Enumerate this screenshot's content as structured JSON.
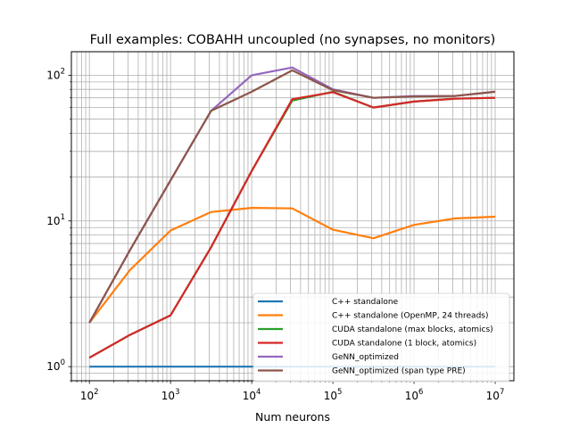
{
  "chart_data": {
    "type": "line",
    "title": "Full examples: COBAHH uncoupled (no synapses, no monitors)",
    "xlabel": "Num neurons",
    "ylabel": "",
    "xscale": "log",
    "yscale": "log",
    "xlim": [
      60,
      17000000
    ],
    "ylim": [
      0.8,
      145
    ],
    "grid": true,
    "legend_position": "lower-right",
    "x_ticks": [
      {
        "value": 100,
        "base": "10",
        "exp": "2"
      },
      {
        "value": 1000,
        "base": "10",
        "exp": "3"
      },
      {
        "value": 10000,
        "base": "10",
        "exp": "4"
      },
      {
        "value": 100000,
        "base": "10",
        "exp": "5"
      },
      {
        "value": 1000000,
        "base": "10",
        "exp": "6"
      },
      {
        "value": 10000000,
        "base": "10",
        "exp": "7"
      }
    ],
    "y_ticks": [
      {
        "value": 1,
        "base": "10",
        "exp": "0"
      },
      {
        "value": 10,
        "base": "10",
        "exp": "1"
      },
      {
        "value": 100,
        "base": "10",
        "exp": "2"
      }
    ],
    "x": [
      100,
      316,
      1000,
      3162,
      10000,
      31623,
      100000,
      316228,
      1000000,
      3162278,
      10000000
    ],
    "series": [
      {
        "name": "C++ standalone",
        "color": "#1f77b4",
        "values": [
          1,
          1,
          1,
          1,
          1,
          1,
          1,
          1,
          1,
          1,
          1
        ]
      },
      {
        "name": "C++ standalone (OpenMP, 24 threads)",
        "color": "#ff7f0e",
        "values": [
          2.0,
          4.6,
          8.6,
          11.5,
          12.3,
          12.2,
          8.7,
          7.6,
          9.4,
          10.4,
          10.7
        ]
      },
      {
        "name": "CUDA standalone (max blocks, atomics)",
        "color": "#2ca02c",
        "values": [
          1.15,
          1.65,
          2.25,
          6.6,
          22.0,
          67.0,
          77.0,
          60.0,
          66.0,
          69.0,
          70.0
        ]
      },
      {
        "name": "CUDA standalone (1 block, atomics)",
        "color": "#d62728",
        "values": [
          1.15,
          1.65,
          2.25,
          6.6,
          22.0,
          68.5,
          76.5,
          60.0,
          66.0,
          69.0,
          70.0
        ]
      },
      {
        "name": "GeNN_optimized",
        "color": "#9467bd",
        "values": [
          2.0,
          6.3,
          19.0,
          57.0,
          100.0,
          113.0,
          80.0,
          70.0,
          72.0,
          72.0,
          77.0
        ]
      },
      {
        "name": "GeNN_optimized (span type PRE)",
        "color": "#8c564b",
        "values": [
          2.0,
          6.3,
          19.0,
          57.0,
          77.0,
          108.0,
          79.0,
          70.0,
          71.5,
          72.0,
          77.0
        ]
      }
    ]
  }
}
